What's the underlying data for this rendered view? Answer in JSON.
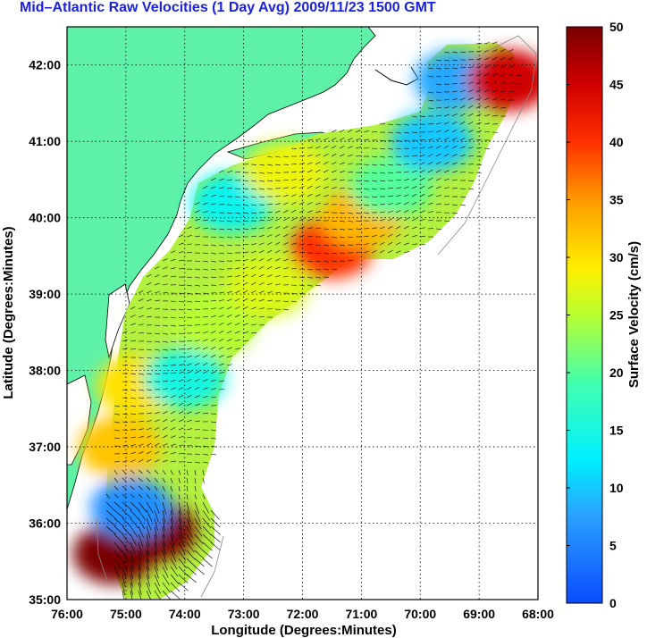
{
  "title": "Mid–Atlantic Raw Velocities (1 Day Avg) 2009/11/23 1500 GMT",
  "colors": {
    "land": "#5ef2a8",
    "title": "#1a22e0",
    "grid": "#000000",
    "vector": "#000000"
  },
  "chart_data": {
    "type": "heatmap",
    "xlabel": "Longitude (Degrees:Minutes)",
    "ylabel": "Latitude (Degrees:Minutes)",
    "x_ticks": [
      "76:00",
      "75:00",
      "74:00",
      "73:00",
      "72:00",
      "71:00",
      "70:00",
      "69:00",
      "68:00"
    ],
    "y_ticks": [
      "42:00",
      "41:00",
      "40:00",
      "39:00",
      "38:00",
      "37:00",
      "36:00",
      "35:00"
    ],
    "xlim": [
      -76,
      -68
    ],
    "ylim": [
      35,
      42.5
    ],
    "grid": true,
    "colorbar": {
      "label": "Surface Velocity (cm/s)",
      "ticks": [
        "0",
        "5",
        "10",
        "15",
        "20",
        "25",
        "30",
        "35",
        "40",
        "45",
        "50"
      ],
      "range": [
        0,
        50
      ],
      "colormap": "jet"
    },
    "velocity_regions": [
      {
        "lon": -75.2,
        "lat": 35.6,
        "speed": 50
      },
      {
        "lon": -74.5,
        "lat": 35.9,
        "speed": 50
      },
      {
        "lon": -74.9,
        "lat": 36.2,
        "speed": 6
      },
      {
        "lon": -75.1,
        "lat": 37.0,
        "speed": 32
      },
      {
        "lon": -74.8,
        "lat": 37.8,
        "speed": 30
      },
      {
        "lon": -74.0,
        "lat": 37.9,
        "speed": 15
      },
      {
        "lon": -73.5,
        "lat": 38.6,
        "speed": 25
      },
      {
        "lon": -72.6,
        "lat": 39.1,
        "speed": 27
      },
      {
        "lon": -71.5,
        "lat": 39.6,
        "speed": 40
      },
      {
        "lon": -71.0,
        "lat": 40.0,
        "speed": 33
      },
      {
        "lon": -73.2,
        "lat": 40.2,
        "speed": 14
      },
      {
        "lon": -72.3,
        "lat": 40.6,
        "speed": 28
      },
      {
        "lon": -70.5,
        "lat": 40.4,
        "speed": 20
      },
      {
        "lon": -69.8,
        "lat": 41.0,
        "speed": 10
      },
      {
        "lon": -69.4,
        "lat": 41.8,
        "speed": 8
      },
      {
        "lon": -68.5,
        "lat": 41.8,
        "speed": 45
      }
    ]
  }
}
